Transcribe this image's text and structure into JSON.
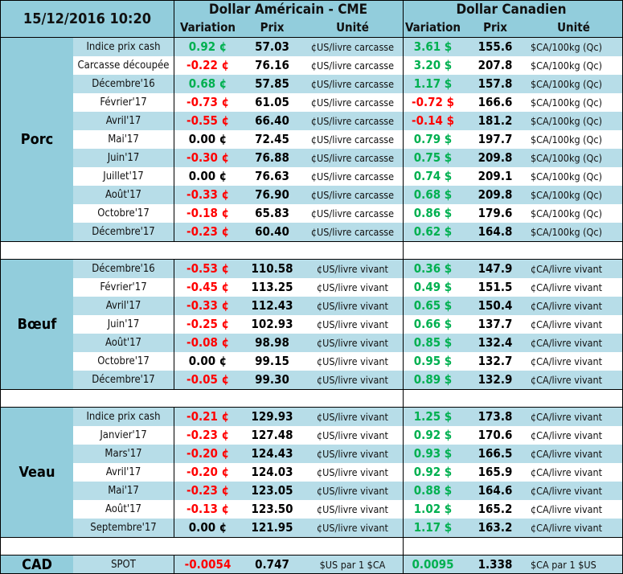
{
  "header": {
    "datetime": "15/12/2016 10:20",
    "usd_title": "Dollar Américain - CME",
    "cad_title": "Dollar Canadien",
    "col_variation": "Variation",
    "col_prix": "Prix",
    "col_unite": "Unité"
  },
  "colors": {
    "positive": "#00b050",
    "negative": "#ff0000",
    "neutral": "#000000",
    "row_alt": "#b7dde8",
    "label_bg": "#92cddc"
  },
  "sections": [
    {
      "label": "Porc",
      "rows": [
        {
          "item": "Indice prix cash",
          "usd_var": "0.92 ¢",
          "usd_prix": "57.03",
          "usd_unit": "¢US/livre carcasse",
          "cad_var": "3.61 $",
          "cad_prix": "155.6",
          "cad_unit": "$CA/100kg (Qc)"
        },
        {
          "item": "Carcasse découpée",
          "usd_var": "-0.22 ¢",
          "usd_prix": "76.16",
          "usd_unit": "¢US/livre carcasse",
          "cad_var": "3.20 $",
          "cad_prix": "207.8",
          "cad_unit": "$CA/100kg (Qc)"
        },
        {
          "item": "Décembre'16",
          "usd_var": "0.68 ¢",
          "usd_prix": "57.85",
          "usd_unit": "¢US/livre carcasse",
          "cad_var": "1.17 $",
          "cad_prix": "157.8",
          "cad_unit": "$CA/100kg (Qc)"
        },
        {
          "item": "Février'17",
          "usd_var": "-0.73 ¢",
          "usd_prix": "61.05",
          "usd_unit": "¢US/livre carcasse",
          "cad_var": "-0.72 $",
          "cad_prix": "166.6",
          "cad_unit": "$CA/100kg (Qc)"
        },
        {
          "item": "Avril'17",
          "usd_var": "-0.55 ¢",
          "usd_prix": "66.40",
          "usd_unit": "¢US/livre carcasse",
          "cad_var": "-0.14 $",
          "cad_prix": "181.2",
          "cad_unit": "$CA/100kg (Qc)"
        },
        {
          "item": "Mai'17",
          "usd_var": "0.00 ¢",
          "usd_prix": "72.45",
          "usd_unit": "¢US/livre carcasse",
          "cad_var": "0.79 $",
          "cad_prix": "197.7",
          "cad_unit": "$CA/100kg (Qc)"
        },
        {
          "item": "Juin'17",
          "usd_var": "-0.30 ¢",
          "usd_prix": "76.88",
          "usd_unit": "¢US/livre carcasse",
          "cad_var": "0.75 $",
          "cad_prix": "209.8",
          "cad_unit": "$CA/100kg (Qc)"
        },
        {
          "item": "Juillet'17",
          "usd_var": "0.00 ¢",
          "usd_prix": "76.63",
          "usd_unit": "¢US/livre carcasse",
          "cad_var": "0.74 $",
          "cad_prix": "209.1",
          "cad_unit": "$CA/100kg (Qc)"
        },
        {
          "item": "Août'17",
          "usd_var": "-0.33 ¢",
          "usd_prix": "76.90",
          "usd_unit": "¢US/livre carcasse",
          "cad_var": "0.68 $",
          "cad_prix": "209.8",
          "cad_unit": "$CA/100kg (Qc)"
        },
        {
          "item": "Octobre'17",
          "usd_var": "-0.18 ¢",
          "usd_prix": "65.83",
          "usd_unit": "¢US/livre carcasse",
          "cad_var": "0.86 $",
          "cad_prix": "179.6",
          "cad_unit": "$CA/100kg (Qc)"
        },
        {
          "item": "Décembre'17",
          "usd_var": "-0.23 ¢",
          "usd_prix": "60.40",
          "usd_unit": "¢US/livre carcasse",
          "cad_var": "0.62 $",
          "cad_prix": "164.8",
          "cad_unit": "$CA/100kg (Qc)"
        }
      ]
    },
    {
      "label": "Bœuf",
      "rows": [
        {
          "item": "Décembre'16",
          "usd_var": "-0.53 ¢",
          "usd_prix": "110.58",
          "usd_unit": "¢US/livre vivant",
          "cad_var": "0.36 $",
          "cad_prix": "147.9",
          "cad_unit": "¢CA/livre vivant"
        },
        {
          "item": "Février'17",
          "usd_var": "-0.45 ¢",
          "usd_prix": "113.25",
          "usd_unit": "¢US/livre vivant",
          "cad_var": "0.49 $",
          "cad_prix": "151.5",
          "cad_unit": "¢CA/livre vivant"
        },
        {
          "item": "Avril'17",
          "usd_var": "-0.33 ¢",
          "usd_prix": "112.43",
          "usd_unit": "¢US/livre vivant",
          "cad_var": "0.65 $",
          "cad_prix": "150.4",
          "cad_unit": "¢CA/livre vivant"
        },
        {
          "item": "Juin'17",
          "usd_var": "-0.25 ¢",
          "usd_prix": "102.93",
          "usd_unit": "¢US/livre vivant",
          "cad_var": "0.66 $",
          "cad_prix": "137.7",
          "cad_unit": "¢CA/livre vivant"
        },
        {
          "item": "Août'17",
          "usd_var": "-0.08 ¢",
          "usd_prix": "98.98",
          "usd_unit": "¢US/livre vivant",
          "cad_var": "0.85 $",
          "cad_prix": "132.4",
          "cad_unit": "¢CA/livre vivant"
        },
        {
          "item": "Octobre'17",
          "usd_var": "0.00 ¢",
          "usd_prix": "99.15",
          "usd_unit": "¢US/livre vivant",
          "cad_var": "0.95 $",
          "cad_prix": "132.7",
          "cad_unit": "¢CA/livre vivant"
        },
        {
          "item": "Décembre'17",
          "usd_var": "-0.05 ¢",
          "usd_prix": "99.30",
          "usd_unit": "¢US/livre vivant",
          "cad_var": "0.89 $",
          "cad_prix": "132.9",
          "cad_unit": "¢CA/livre vivant"
        }
      ]
    },
    {
      "label": "Veau",
      "rows": [
        {
          "item": "Indice prix cash",
          "usd_var": "-0.21 ¢",
          "usd_prix": "129.93",
          "usd_unit": "¢US/livre vivant",
          "cad_var": "1.25 $",
          "cad_prix": "173.8",
          "cad_unit": "¢CA/livre vivant"
        },
        {
          "item": "Janvier'17",
          "usd_var": "-0.23 ¢",
          "usd_prix": "127.48",
          "usd_unit": "¢US/livre vivant",
          "cad_var": "0.92 $",
          "cad_prix": "170.6",
          "cad_unit": "¢CA/livre vivant"
        },
        {
          "item": "Mars'17",
          "usd_var": "-0.20 ¢",
          "usd_prix": "124.43",
          "usd_unit": "¢US/livre vivant",
          "cad_var": "0.93 $",
          "cad_prix": "166.5",
          "cad_unit": "¢CA/livre vivant"
        },
        {
          "item": "Avril'17",
          "usd_var": "-0.20 ¢",
          "usd_prix": "124.03",
          "usd_unit": "¢US/livre vivant",
          "cad_var": "0.92 $",
          "cad_prix": "165.9",
          "cad_unit": "¢CA/livre vivant"
        },
        {
          "item": "Mai'17",
          "usd_var": "-0.23 ¢",
          "usd_prix": "123.05",
          "usd_unit": "¢US/livre vivant",
          "cad_var": "0.88 $",
          "cad_prix": "164.6",
          "cad_unit": "¢CA/livre vivant"
        },
        {
          "item": "Août'17",
          "usd_var": "-0.13 ¢",
          "usd_prix": "123.50",
          "usd_unit": "¢US/livre vivant",
          "cad_var": "1.02 $",
          "cad_prix": "165.2",
          "cad_unit": "¢CA/livre vivant"
        },
        {
          "item": "Septembre'17",
          "usd_var": "0.00 ¢",
          "usd_prix": "121.95",
          "usd_unit": "¢US/livre vivant",
          "cad_var": "1.17 $",
          "cad_prix": "163.2",
          "cad_unit": "¢CA/livre vivant"
        }
      ]
    },
    {
      "label": "CAD",
      "rows": [
        {
          "item": "SPOT",
          "usd_var": "-0.0054",
          "usd_prix": "0.747",
          "usd_unit": "$US par 1 $CA",
          "cad_var": "0.0095",
          "cad_prix": "1.338",
          "cad_unit": "$CA par 1 $US"
        }
      ]
    }
  ]
}
